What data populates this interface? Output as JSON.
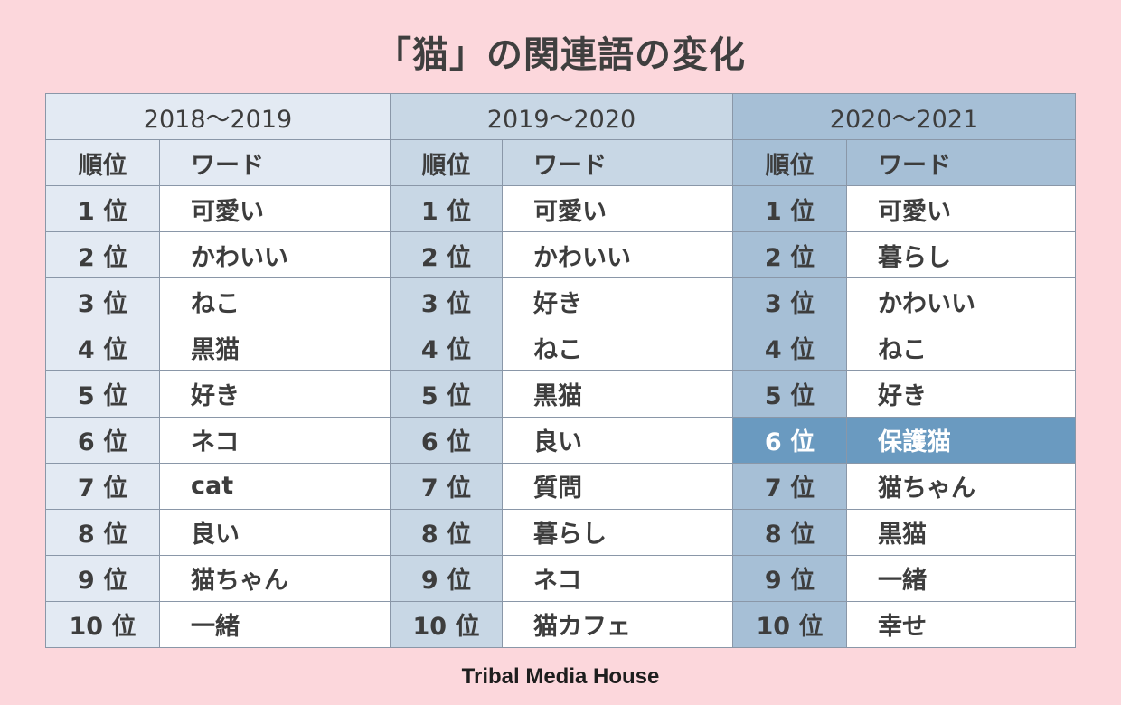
{
  "title": "「猫」の関連語の変化",
  "footer": "Tribal Media House",
  "chart_data": {
    "type": "table",
    "columns": [
      "順位",
      "ワード"
    ],
    "periods": [
      {
        "label": "2018～2019",
        "rows": [
          {
            "rank": "1 位",
            "word": "可愛い"
          },
          {
            "rank": "2 位",
            "word": "かわいい"
          },
          {
            "rank": "3 位",
            "word": "ねこ"
          },
          {
            "rank": "4 位",
            "word": "黒猫"
          },
          {
            "rank": "5 位",
            "word": "好き"
          },
          {
            "rank": "6 位",
            "word": "ネコ"
          },
          {
            "rank": "7 位",
            "word": "cat"
          },
          {
            "rank": "8 位",
            "word": "良い"
          },
          {
            "rank": "9 位",
            "word": "猫ちゃん"
          },
          {
            "rank": "10 位",
            "word": "一緒"
          }
        ]
      },
      {
        "label": "2019～2020",
        "rows": [
          {
            "rank": "1 位",
            "word": "可愛い"
          },
          {
            "rank": "2 位",
            "word": "かわいい"
          },
          {
            "rank": "3 位",
            "word": "好き"
          },
          {
            "rank": "4 位",
            "word": "ねこ"
          },
          {
            "rank": "5 位",
            "word": "黒猫"
          },
          {
            "rank": "6 位",
            "word": "良い"
          },
          {
            "rank": "7 位",
            "word": "質問"
          },
          {
            "rank": "8 位",
            "word": "暮らし"
          },
          {
            "rank": "9 位",
            "word": "ネコ"
          },
          {
            "rank": "10 位",
            "word": "猫カフェ"
          }
        ]
      },
      {
        "label": "2020～2021",
        "rows": [
          {
            "rank": "1 位",
            "word": "可愛い"
          },
          {
            "rank": "2 位",
            "word": "暮らし"
          },
          {
            "rank": "3 位",
            "word": "かわいい"
          },
          {
            "rank": "4 位",
            "word": "ねこ"
          },
          {
            "rank": "5 位",
            "word": "好き"
          },
          {
            "rank": "6 位",
            "word": "保護猫",
            "highlight": true
          },
          {
            "rank": "7 位",
            "word": "猫ちゃん"
          },
          {
            "rank": "8 位",
            "word": "黒猫"
          },
          {
            "rank": "9 位",
            "word": "一緒"
          },
          {
            "rank": "10 位",
            "word": "幸せ"
          }
        ]
      }
    ],
    "colors": {
      "background": "#fcd7dc",
      "period1": "#e3eaf3",
      "period2": "#c8d7e5",
      "period3": "#a6bfd6",
      "highlight": "#6a9ac0"
    }
  }
}
